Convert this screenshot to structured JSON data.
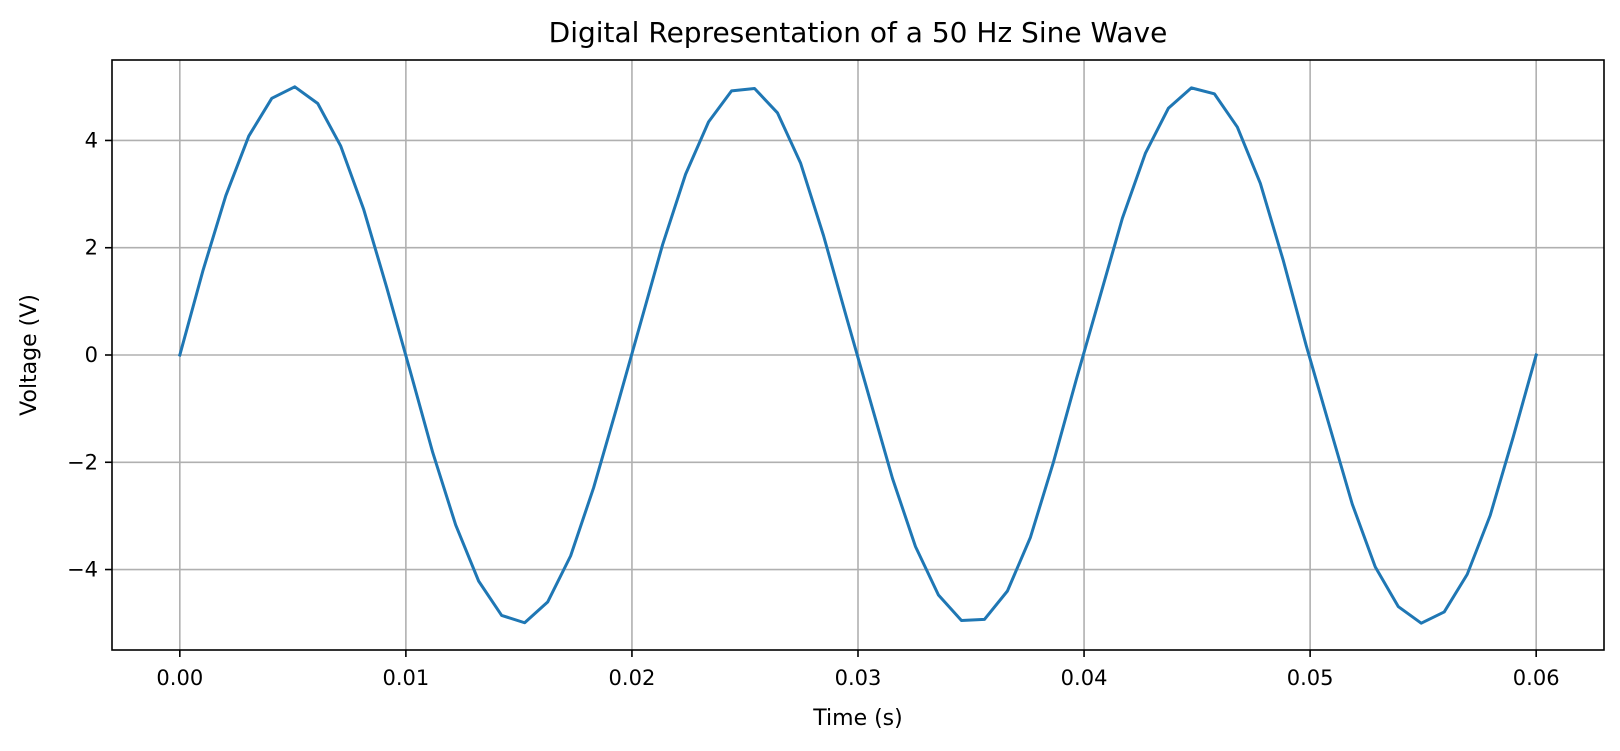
{
  "chart_data": {
    "type": "line",
    "title": "Digital Representation of a 50 Hz Sine Wave",
    "xlabel": "Time (s)",
    "ylabel": "Voltage (V)",
    "xlim": [
      -0.003,
      0.063
    ],
    "ylim": [
      -5.5,
      5.5
    ],
    "grid": true,
    "x_ticks": [
      0.0,
      0.01,
      0.02,
      0.03,
      0.04,
      0.05,
      0.06
    ],
    "x_tick_labels": [
      "0.00",
      "0.01",
      "0.02",
      "0.03",
      "0.04",
      "0.05",
      "0.06"
    ],
    "y_ticks": [
      -4,
      -2,
      0,
      2,
      4
    ],
    "y_tick_labels": [
      "−4",
      "−2",
      "0",
      "2",
      "4"
    ],
    "series": [
      {
        "color": "#1f77b4",
        "x": [
          0.0,
          0.001017,
          0.002034,
          0.003051,
          0.004068,
          0.005085,
          0.006102,
          0.007119,
          0.008136,
          0.009153,
          0.010169,
          0.011186,
          0.012203,
          0.01322,
          0.014237,
          0.015254,
          0.016271,
          0.017288,
          0.018305,
          0.019322,
          0.020339,
          0.021356,
          0.022373,
          0.02339,
          0.024407,
          0.025424,
          0.026441,
          0.027458,
          0.028475,
          0.029492,
          0.030508,
          0.031525,
          0.032542,
          0.033559,
          0.034576,
          0.035593,
          0.03661,
          0.037627,
          0.038644,
          0.039661,
          0.040678,
          0.041695,
          0.042712,
          0.043729,
          0.044746,
          0.045763,
          0.04678,
          0.047797,
          0.048814,
          0.049831,
          0.050847,
          0.051864,
          0.052881,
          0.053898,
          0.054915,
          0.055932,
          0.056949,
          0.057966,
          0.058983,
          0.06
        ],
        "y": [
          0.0,
          1.564,
          2.971,
          4.082,
          4.786,
          5.0,
          4.689,
          3.895,
          2.712,
          1.258,
          -0.266,
          -1.815,
          -3.169,
          -4.216,
          -4.855,
          -4.992,
          -4.606,
          -3.745,
          -2.474,
          -0.99,
          0.532,
          2.057,
          3.37,
          4.346,
          4.924,
          4.968,
          4.513,
          3.58,
          2.226,
          0.702,
          -0.8,
          -2.3,
          -3.57,
          -4.475,
          -4.95,
          -4.93,
          -4.4,
          -3.4,
          -2.0,
          -0.45,
          1.05,
          2.55,
          3.76,
          4.6,
          4.98,
          4.87,
          4.25,
          3.2,
          1.76,
          0.17,
          -1.31,
          -2.78,
          -3.95,
          -4.69,
          -5.0,
          -4.79,
          -4.09,
          -2.99,
          -1.53,
          0.0
        ]
      }
    ]
  }
}
